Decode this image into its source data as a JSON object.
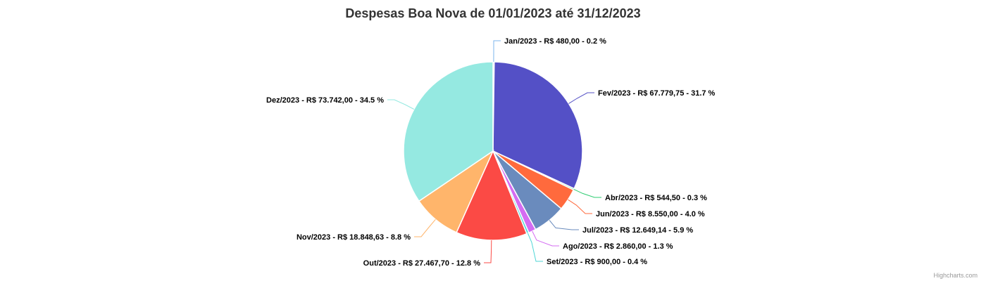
{
  "chart_data": {
    "type": "pie",
    "title": "Despesas Boa Nova de 01/01/2023 até 31/12/2023",
    "credits": "Highcharts.com",
    "slices": [
      {
        "month": "Jan/2023",
        "amount": "R$ 480,00",
        "value": 480.0,
        "percent": "0.2 %",
        "color": "#7cb5ec",
        "label": "Jan/2023 - R$ 480,00 - 0.2 %"
      },
      {
        "month": "Fev/2023",
        "amount": "R$ 67.779,75",
        "value": 67779.75,
        "percent": "31.7 %",
        "color": "#5450c6",
        "label": "Fev/2023 - R$ 67.779,75 - 31.7 %"
      },
      {
        "month": "Abr/2023",
        "amount": "R$ 544,50",
        "value": 544.5,
        "percent": "0.3 %",
        "color": "#2ecc71",
        "label": "Abr/2023 - R$ 544,50 - 0.3 %"
      },
      {
        "month": "Jun/2023",
        "amount": "R$ 8.550,00",
        "value": 8550.0,
        "percent": "4.0 %",
        "color": "#ff6a3d",
        "label": "Jun/2023 - R$ 8.550,00 - 4.0 %"
      },
      {
        "month": "Jul/2023",
        "amount": "R$ 12.649,14",
        "value": 12649.14,
        "percent": "5.9 %",
        "color": "#6a8bbd",
        "label": "Jul/2023 - R$ 12.649,14 - 5.9 %"
      },
      {
        "month": "Ago/2023",
        "amount": "R$ 2.860,00",
        "value": 2860.0,
        "percent": "1.3 %",
        "color": "#d46cf2",
        "label": "Ago/2023 - R$ 2.860,00 - 1.3 %"
      },
      {
        "month": "Set/2023",
        "amount": "R$ 900,00",
        "value": 900.0,
        "percent": "0.4 %",
        "color": "#4fd6d6",
        "label": "Set/2023 - R$ 900,00 - 0.4 %"
      },
      {
        "month": "Out/2023",
        "amount": "R$ 27.467,70",
        "value": 27467.7,
        "percent": "12.8 %",
        "color": "#fb4a45",
        "label": "Out/2023 - R$ 27.467,70 - 12.8 %"
      },
      {
        "month": "Nov/2023",
        "amount": "R$ 18.848,63",
        "value": 18848.63,
        "percent": "8.8 %",
        "color": "#ffb56b",
        "label": "Nov/2023 - R$ 18.848,63 - 8.8 %"
      },
      {
        "month": "Dez/2023",
        "amount": "R$ 73.742,00",
        "value": 73742.0,
        "percent": "34.5 %",
        "color": "#95e9e1",
        "label": "Dez/2023 - R$ 73.742,00 - 34.5 %"
      }
    ]
  }
}
